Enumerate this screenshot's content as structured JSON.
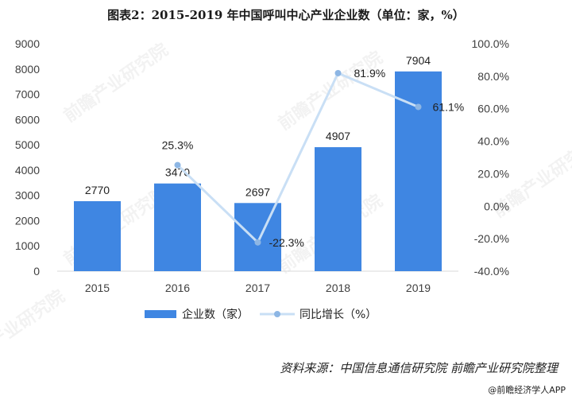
{
  "page_title": "图表2：2015-2019 年中国呼叫中心产业企业数（单位：家，%）",
  "source": "资料来源：中国信息通信研究院  前瞻产业研究院整理",
  "footer": "@前瞻经济学人APP",
  "watermark": "前瞻产业研究院",
  "colors": {
    "bar": "#3F86E2",
    "line": "#C9DFF5",
    "marker": "#8DB6E4",
    "axis_text": "#404040"
  },
  "chart_data": {
    "type": "bar",
    "title": "图表2：2015-2019 年中国呼叫中心产业企业数（单位：家，%）",
    "categories": [
      "2015",
      "2016",
      "2017",
      "2018",
      "2019"
    ],
    "series": [
      {
        "name": "企业数（家）",
        "type": "bar",
        "axis": "left",
        "values": [
          2770,
          3470,
          2697,
          4907,
          7904
        ],
        "labels": [
          "2770",
          "3470",
          "2697",
          "4907",
          "7904"
        ]
      },
      {
        "name": "同比增长（%）",
        "type": "line",
        "axis": "right",
        "values": [
          null,
          25.3,
          -22.3,
          81.9,
          61.1
        ],
        "labels": [
          "",
          "25.3%",
          "-22.3%",
          "81.9%",
          "61.1%"
        ]
      }
    ],
    "y_left": {
      "min": 0,
      "max": 9000,
      "step": 1000,
      "ticks": [
        "0",
        "1000",
        "2000",
        "3000",
        "4000",
        "5000",
        "6000",
        "7000",
        "8000",
        "9000"
      ]
    },
    "y_right": {
      "min": -40,
      "max": 100,
      "step": 20,
      "ticks": [
        "-40.0%",
        "-20.0%",
        "0.0%",
        "20.0%",
        "40.0%",
        "60.0%",
        "80.0%",
        "100.0%"
      ]
    },
    "grid": false,
    "legend": "bottom"
  }
}
